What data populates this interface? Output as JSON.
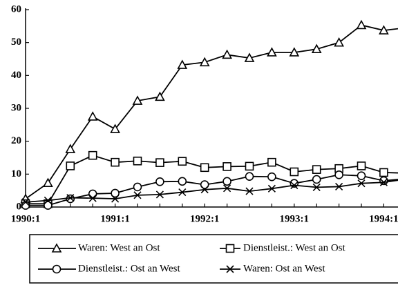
{
  "chart_data": {
    "type": "line",
    "categories": [
      "1990:1",
      null,
      null,
      null,
      "1991:1",
      null,
      null,
      null,
      "1992:1",
      null,
      null,
      null,
      "1993:1",
      null,
      null,
      null,
      "1994:1",
      null
    ],
    "series": [
      {
        "name": "Waren: West an Ost",
        "color": "#000000",
        "marker": "triangle",
        "values": [
          2.5,
          7.3,
          17.6,
          27.5,
          23.7,
          32.3,
          33.5,
          43.2,
          44,
          46.3,
          45.3,
          47,
          47,
          48,
          50,
          55.3,
          53.7,
          54.5
        ]
      },
      {
        "name": "Dienstleist.: West an Ost",
        "color": "#000000",
        "marker": "square",
        "values": [
          1,
          1,
          12.5,
          15.7,
          13.6,
          14,
          13.5,
          13.9,
          12,
          12.3,
          12.4,
          13.6,
          10.7,
          11.4,
          11.7,
          12.5,
          10.5,
          10.3
        ]
      },
      {
        "name": "Dienstleist.: Ost an West",
        "color": "#000000",
        "marker": "circle",
        "values": [
          0.5,
          0.5,
          2.5,
          4,
          4.2,
          6.1,
          7.7,
          7.8,
          6.8,
          7.8,
          9.3,
          9.2,
          7.2,
          8.4,
          9.8,
          9.5,
          8,
          8.6
        ]
      },
      {
        "name": "Waren: Ost an West",
        "color": "#000000",
        "marker": "x",
        "values": [
          1.5,
          2,
          2.8,
          2.7,
          2.5,
          3.6,
          3.8,
          4.5,
          5.3,
          5.7,
          4.8,
          5.6,
          6.6,
          6,
          6.2,
          7.2,
          7.5,
          8.5
        ]
      }
    ],
    "ylim": [
      0,
      60
    ],
    "yticks": [
      0,
      10,
      20,
      30,
      40,
      50,
      60
    ],
    "grid": false,
    "legend": "bottom"
  }
}
